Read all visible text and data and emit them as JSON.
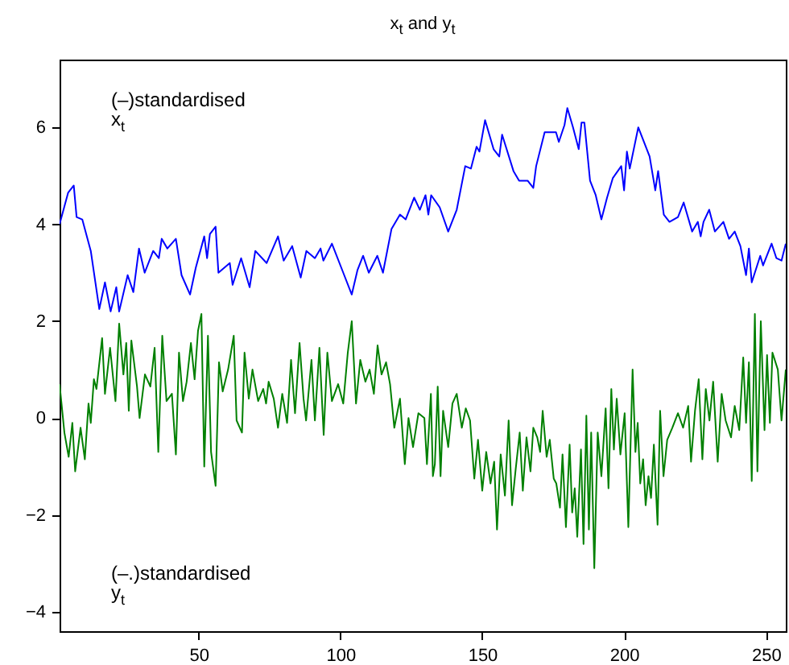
{
  "chart_data": {
    "type": "line",
    "title": "x$_{t}$ and y$_{t}$",
    "annotations": [
      "(–)standardised",
      "x$_{t}$",
      "(–.)standardised",
      "y$_{t}$"
    ],
    "xlim": [
      1,
      257
    ],
    "xticks": [
      50,
      100,
      150,
      200,
      250
    ],
    "ylim": [
      -4.4,
      7.4
    ],
    "yticks": [
      -4,
      -2,
      0,
      2,
      4,
      6
    ],
    "grid": false,
    "legend": false,
    "marker": "none",
    "line_style": "solid",
    "series": [
      {
        "color": "#0000ff",
        "x": [
          1,
          4,
          6,
          7,
          9,
          12,
          15,
          17,
          19,
          21,
          22,
          25,
          27,
          29,
          31,
          34,
          36,
          37,
          39,
          42,
          44,
          47,
          49,
          52,
          53,
          54,
          56,
          57,
          61,
          62,
          65,
          68,
          70,
          74,
          78,
          80,
          83,
          86,
          88,
          91,
          93,
          94,
          97,
          101,
          104,
          106,
          108,
          110,
          113,
          115,
          118,
          121,
          123,
          126,
          128,
          130,
          131,
          132,
          135,
          138,
          141,
          144,
          146,
          148,
          149,
          151,
          154,
          156,
          157,
          161,
          163,
          166,
          168,
          169,
          172,
          176,
          177,
          179,
          180,
          182,
          184,
          185,
          186,
          188,
          190,
          192,
          194,
          196,
          199,
          200,
          201,
          202,
          205,
          209,
          211,
          212,
          214,
          216,
          219,
          221,
          224,
          226,
          227,
          228,
          230,
          232,
          235,
          237,
          239,
          241,
          243,
          244,
          245,
          248,
          249,
          252,
          253.7,
          255.5,
          257
        ],
        "values": [
          4.0,
          4.65,
          4.8,
          4.15,
          4.1,
          3.45,
          2.25,
          2.8,
          2.2,
          2.7,
          2.2,
          2.95,
          2.6,
          3.5,
          3.0,
          3.45,
          3.3,
          3.7,
          3.5,
          3.7,
          2.95,
          2.55,
          3.1,
          3.75,
          3.3,
          3.8,
          3.95,
          3.0,
          3.2,
          2.75,
          3.3,
          2.7,
          3.45,
          3.2,
          3.75,
          3.25,
          3.55,
          2.9,
          3.45,
          3.3,
          3.5,
          3.25,
          3.6,
          3.0,
          2.55,
          3.05,
          3.35,
          3.0,
          3.35,
          3.0,
          3.9,
          4.2,
          4.1,
          4.55,
          4.3,
          4.6,
          4.2,
          4.6,
          4.35,
          3.85,
          4.3,
          5.2,
          5.15,
          5.6,
          5.5,
          6.15,
          5.55,
          5.4,
          5.85,
          5.1,
          4.9,
          4.9,
          4.75,
          5.2,
          5.9,
          5.9,
          5.7,
          6.05,
          6.4,
          6.0,
          5.55,
          6.1,
          6.1,
          4.9,
          4.6,
          4.1,
          4.55,
          4.95,
          5.2,
          4.7,
          5.5,
          5.15,
          6.0,
          5.4,
          4.7,
          5.1,
          4.2,
          4.05,
          4.15,
          4.45,
          3.85,
          4.05,
          3.75,
          4.05,
          4.3,
          3.85,
          4.05,
          3.7,
          3.85,
          3.55,
          2.95,
          3.5,
          2.8,
          3.35,
          3.15,
          3.6,
          3.3,
          3.25,
          3.6
        ]
      },
      {
        "color": "#008000",
        "x": [
          1,
          2.7,
          4.2,
          5.5,
          6.5,
          8.4,
          9.9,
          11.2,
          12,
          13.1,
          14,
          16,
          17,
          18.8,
          20.7,
          22,
          23.5,
          24.5,
          25.4,
          26.3,
          28.3,
          29.2,
          31.1,
          33,
          34.5,
          35.8,
          37.2,
          38.7,
          40.6,
          42,
          43.1,
          44.5,
          45.8,
          47.3,
          48.6,
          49.8,
          51,
          52,
          53.3,
          54.4,
          56,
          57.2,
          58.5,
          60.4,
          62.4,
          63.4,
          65.3,
          66.2,
          67.7,
          69,
          71,
          72.8,
          73.8,
          74.7,
          76.5,
          78,
          79.5,
          81.2,
          82.6,
          84,
          85.6,
          87,
          87.9,
          89.8,
          91,
          92.6,
          94.1,
          95.4,
          97,
          99.2,
          101,
          102.6,
          104,
          105.5,
          107,
          108.8,
          110.3,
          111.8,
          113.1,
          114.5,
          116.1,
          117.5,
          119,
          121,
          122.7,
          124,
          125.6,
          127.5,
          129.6,
          130.5,
          131.9,
          132.6,
          133.3,
          134.3,
          135.3,
          136.2,
          138,
          139.5,
          141,
          142.8,
          144.2,
          145.7,
          147.2,
          148.5,
          150,
          151.4,
          152.9,
          154.2,
          155.2,
          156.5,
          158,
          159.3,
          160.5,
          161.8,
          163.2,
          164.3,
          165.6,
          167,
          168,
          169.4,
          170.4,
          171.3,
          172.7,
          173.8,
          175.2,
          176.1,
          177.4,
          178.3,
          179.5,
          180.8,
          181.7,
          182.6,
          183.5,
          184.8,
          185.7,
          186.7,
          187.6,
          188.4,
          189.5,
          190.7,
          192,
          193.5,
          194.5,
          195.5,
          196.4,
          197.4,
          198.7,
          200.2,
          201.5,
          203,
          204,
          204.8,
          205.7,
          206.7,
          207.6,
          208.6,
          209.5,
          210.5,
          211.8,
          212.7,
          213.9,
          215.2,
          217,
          219,
          220.8,
          222.6,
          223.6,
          225,
          226.3,
          227.6,
          228.8,
          230.1,
          231.4,
          233,
          234.4,
          235.8,
          237.7,
          239,
          240.6,
          242,
          243,
          244,
          245,
          246.1,
          247,
          248.2,
          249.5,
          250.4,
          251.4,
          252.3,
          254.2,
          255.5,
          257
        ],
        "values": [
          0.7,
          -0.3,
          -0.8,
          -0.1,
          -1.1,
          -0.2,
          -0.85,
          0.3,
          -0.1,
          0.8,
          0.6,
          1.65,
          0.5,
          1.45,
          0.35,
          1.95,
          0.9,
          1.55,
          0.15,
          1.6,
          0.65,
          0.0,
          0.9,
          0.65,
          1.45,
          -0.7,
          1.7,
          0.35,
          0.5,
          -0.75,
          1.35,
          0.35,
          0.75,
          1.55,
          0.8,
          1.8,
          2.15,
          -1.0,
          1.7,
          -0.7,
          -1.4,
          1.15,
          0.55,
          1.0,
          1.7,
          -0.05,
          -0.3,
          1.35,
          0.4,
          1.0,
          0.35,
          0.6,
          0.3,
          0.75,
          0.4,
          -0.2,
          0.5,
          -0.1,
          1.2,
          0.1,
          1.55,
          0.4,
          -0.05,
          1.2,
          -0.05,
          1.45,
          -0.35,
          1.35,
          0.35,
          0.7,
          0.3,
          1.35,
          2.0,
          0.3,
          1.2,
          0.75,
          1.0,
          0.5,
          1.5,
          0.9,
          1.15,
          0.7,
          -0.2,
          0.4,
          -0.95,
          0.0,
          -0.6,
          0.1,
          0.0,
          -0.95,
          0.5,
          -1.2,
          -0.95,
          0.65,
          -1.2,
          0.15,
          -0.6,
          0.3,
          0.5,
          -0.2,
          0.2,
          -0.05,
          -1.25,
          -0.45,
          -1.5,
          -0.7,
          -1.35,
          -0.9,
          -2.3,
          -0.75,
          -1.6,
          -0.05,
          -1.8,
          -1.05,
          -0.3,
          -1.5,
          -0.4,
          -1.1,
          -0.2,
          -0.4,
          -0.7,
          0.15,
          -0.8,
          -0.45,
          -1.25,
          -1.35,
          -1.85,
          -0.75,
          -2.25,
          -0.55,
          -1.95,
          -1.45,
          -2.45,
          -0.65,
          -2.6,
          0.05,
          -2.3,
          -0.3,
          -3.1,
          -0.3,
          -1.2,
          0.2,
          -1.45,
          0.6,
          -0.65,
          0.4,
          -0.75,
          0.1,
          -2.25,
          1.0,
          -0.7,
          -0.1,
          -1.35,
          -0.85,
          -1.8,
          -1.2,
          -1.65,
          -0.55,
          -2.2,
          0.15,
          -1.2,
          -0.45,
          -0.2,
          0.1,
          -0.2,
          0.25,
          -0.9,
          0.15,
          0.8,
          -0.85,
          0.6,
          -0.05,
          0.75,
          -0.9,
          0.5,
          -0.05,
          -0.4,
          0.25,
          -0.25,
          1.25,
          -0.1,
          1.15,
          -1.3,
          2.15,
          -1.1,
          2.0,
          -0.25,
          1.3,
          -0.1,
          1.35,
          1.0,
          -0.05,
          1.0
        ]
      }
    ]
  }
}
